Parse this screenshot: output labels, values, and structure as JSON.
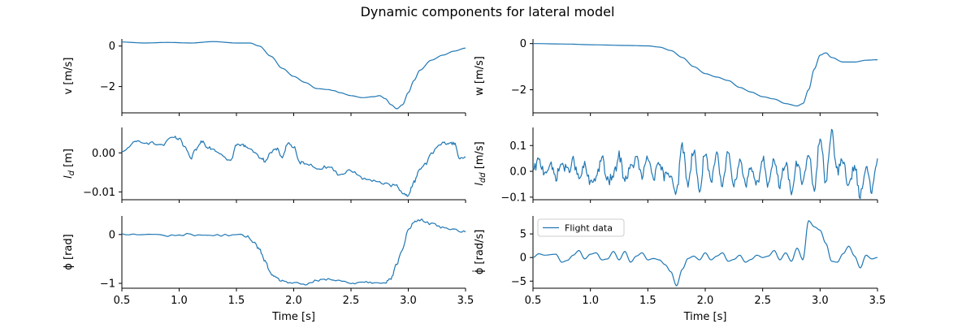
{
  "figure": {
    "title": "Dynamic components for lateral model",
    "line_color": "#1f77b4"
  },
  "chart_data": [
    {
      "id": "v",
      "type": "line",
      "ylabel": "v [m/s]",
      "xlim": [
        0.5,
        3.5
      ],
      "ylim": [
        -3.3,
        0.35
      ],
      "xticks": [
        0.5,
        1.0,
        1.5,
        2.0,
        2.5,
        3.0,
        3.5
      ],
      "yticks": [
        0,
        -2
      ],
      "ytick_labels": [
        "0",
        "−2"
      ],
      "show_xticklabels": false,
      "grid": false,
      "series": [
        {
          "noise": 0,
          "x": [
            0.5,
            0.7,
            0.9,
            1.1,
            1.3,
            1.5,
            1.62,
            1.7,
            1.8,
            1.9,
            2.0,
            2.1,
            2.2,
            2.3,
            2.35,
            2.4,
            2.5,
            2.6,
            2.7,
            2.75,
            2.8,
            2.85,
            2.9,
            2.95,
            3.0,
            3.05,
            3.1,
            3.2,
            3.3,
            3.4,
            3.5
          ],
          "y": [
            0.2,
            0.15,
            0.18,
            0.15,
            0.22,
            0.15,
            0.15,
            0.0,
            -0.5,
            -1.1,
            -1.5,
            -1.8,
            -2.1,
            -2.15,
            -2.2,
            -2.3,
            -2.45,
            -2.55,
            -2.5,
            -2.45,
            -2.6,
            -2.9,
            -3.1,
            -2.9,
            -2.3,
            -1.7,
            -1.2,
            -0.7,
            -0.45,
            -0.25,
            -0.1
          ]
        }
      ]
    },
    {
      "id": "w",
      "type": "line",
      "ylabel": "w [m/s]",
      "xlim": [
        0.5,
        3.5
      ],
      "ylim": [
        -3.0,
        0.2
      ],
      "xticks": [
        0.5,
        1.0,
        1.5,
        2.0,
        2.5,
        3.0,
        3.5
      ],
      "yticks": [
        0,
        -2
      ],
      "ytick_labels": [
        "0",
        "−2"
      ],
      "show_xticklabels": false,
      "grid": false,
      "series": [
        {
          "noise": 0,
          "x": [
            0.5,
            0.8,
            1.0,
            1.3,
            1.5,
            1.6,
            1.7,
            1.8,
            1.9,
            2.0,
            2.1,
            2.2,
            2.3,
            2.4,
            2.5,
            2.6,
            2.7,
            2.8,
            2.85,
            2.9,
            2.95,
            3.0,
            3.05,
            3.1,
            3.2,
            3.3,
            3.4,
            3.5
          ],
          "y": [
            0.0,
            -0.02,
            -0.05,
            -0.08,
            -0.1,
            -0.15,
            -0.3,
            -0.6,
            -1.0,
            -1.3,
            -1.45,
            -1.6,
            -1.9,
            -2.1,
            -2.3,
            -2.4,
            -2.6,
            -2.7,
            -2.6,
            -2.0,
            -1.1,
            -0.5,
            -0.4,
            -0.6,
            -0.8,
            -0.8,
            -0.72,
            -0.7
          ]
        }
      ]
    },
    {
      "id": "l_d",
      "type": "line",
      "ylabel": "l_d [m]",
      "xlim": [
        0.5,
        3.5
      ],
      "ylim": [
        -0.012,
        0.0065
      ],
      "xticks": [
        0.5,
        1.0,
        1.5,
        2.0,
        2.5,
        3.0,
        3.5
      ],
      "yticks": [
        0.0,
        -0.01
      ],
      "ytick_labels": [
        "0.00",
        "−0.01"
      ],
      "show_xticklabels": false,
      "grid": false,
      "series": [
        {
          "noise": 0.0004,
          "x": [
            0.5,
            0.6,
            0.65,
            0.75,
            0.85,
            0.95,
            1.0,
            1.05,
            1.1,
            1.15,
            1.2,
            1.25,
            1.3,
            1.35,
            1.45,
            1.5,
            1.55,
            1.6,
            1.7,
            1.75,
            1.8,
            1.85,
            1.9,
            1.95,
            2.0,
            2.05,
            2.1,
            2.2,
            2.3,
            2.4,
            2.5,
            2.6,
            2.7,
            2.8,
            2.9,
            2.95,
            3.0,
            3.05,
            3.1,
            3.15,
            3.2,
            3.3,
            3.35,
            3.4,
            3.45,
            3.5
          ],
          "y": [
            0.0,
            0.0025,
            0.003,
            0.0025,
            0.002,
            0.004,
            0.0035,
            0.0015,
            -0.0015,
            0.001,
            0.003,
            0.0015,
            0.001,
            0.0,
            -0.002,
            0.002,
            0.002,
            0.0015,
            -0.001,
            -0.002,
            0.0,
            0.001,
            -0.001,
            0.0025,
            0.0015,
            -0.0025,
            -0.0025,
            -0.004,
            -0.0035,
            -0.0055,
            -0.0045,
            -0.0065,
            -0.007,
            -0.008,
            -0.0085,
            -0.0105,
            -0.0108,
            -0.0075,
            -0.004,
            -0.003,
            0.0,
            0.0025,
            0.0025,
            0.0025,
            -0.0015,
            -0.001
          ]
        }
      ]
    },
    {
      "id": "l_dd",
      "type": "line",
      "ylabel": "l_dd [m/s]",
      "xlim": [
        0.5,
        3.5
      ],
      "ylim": [
        -0.11,
        0.17
      ],
      "xticks": [
        0.5,
        1.0,
        1.5,
        2.0,
        2.5,
        3.0,
        3.5
      ],
      "yticks": [
        0.1,
        0.0,
        -0.1
      ],
      "ytick_labels": [
        "0.1",
        "0.0",
        "−0.1"
      ],
      "show_xticklabels": false,
      "grid": false,
      "series": [
        {
          "noise": 0.02,
          "x": [
            0.5,
            0.55,
            0.6,
            0.65,
            0.7,
            0.75,
            0.8,
            0.85,
            0.9,
            0.95,
            1.0,
            1.05,
            1.1,
            1.15,
            1.2,
            1.25,
            1.3,
            1.35,
            1.4,
            1.45,
            1.5,
            1.55,
            1.6,
            1.65,
            1.7,
            1.75,
            1.8,
            1.85,
            1.9,
            1.95,
            2.0,
            2.05,
            2.1,
            2.15,
            2.2,
            2.25,
            2.3,
            2.35,
            2.4,
            2.45,
            2.5,
            2.55,
            2.6,
            2.65,
            2.7,
            2.75,
            2.8,
            2.85,
            2.9,
            2.95,
            3.0,
            3.05,
            3.1,
            3.15,
            3.2,
            3.25,
            3.3,
            3.35,
            3.4,
            3.45,
            3.5
          ],
          "y": [
            0.0,
            0.04,
            0.0,
            0.02,
            -0.02,
            0.03,
            0.0,
            0.04,
            -0.03,
            0.02,
            -0.05,
            -0.02,
            0.05,
            -0.04,
            -0.02,
            0.06,
            -0.03,
            0.01,
            0.05,
            -0.02,
            0.05,
            -0.02,
            0.02,
            -0.02,
            -0.01,
            -0.08,
            0.1,
            -0.05,
            0.09,
            -0.08,
            0.08,
            -0.05,
            0.06,
            -0.06,
            0.09,
            -0.06,
            0.05,
            -0.05,
            0.02,
            -0.05,
            0.05,
            -0.06,
            0.04,
            -0.05,
            0.04,
            -0.08,
            0.03,
            -0.04,
            0.06,
            -0.07,
            0.13,
            -0.04,
            0.16,
            0.0,
            0.04,
            -0.06,
            0.02,
            -0.09,
            0.02,
            -0.08,
            0.05
          ]
        }
      ]
    },
    {
      "id": "phi",
      "type": "line",
      "ylabel": "ϕ [rad]",
      "xlim": [
        0.5,
        3.5
      ],
      "ylim": [
        -1.1,
        0.38
      ],
      "xticks": [
        0.5,
        1.0,
        1.5,
        2.0,
        2.5,
        3.0,
        3.5
      ],
      "xtick_labels": [
        "0.5",
        "1.0",
        "1.5",
        "2.0",
        "2.5",
        "3.0",
        "3.5"
      ],
      "yticks": [
        0,
        -1
      ],
      "ytick_labels": [
        "0",
        "−1"
      ],
      "show_xticklabels": true,
      "xlabel": "Time [s]",
      "grid": false,
      "series": [
        {
          "noise": 0.025,
          "x": [
            0.5,
            0.7,
            0.9,
            1.1,
            1.3,
            1.5,
            1.6,
            1.65,
            1.7,
            1.75,
            1.8,
            1.85,
            1.9,
            2.0,
            2.1,
            2.2,
            2.3,
            2.4,
            2.5,
            2.6,
            2.7,
            2.8,
            2.85,
            2.9,
            2.95,
            3.0,
            3.05,
            3.1,
            3.2,
            3.3,
            3.4,
            3.5
          ],
          "y": [
            0.0,
            0.0,
            -0.02,
            0.0,
            -0.02,
            0.0,
            -0.05,
            -0.15,
            -0.3,
            -0.55,
            -0.8,
            -0.9,
            -0.95,
            -1.0,
            -1.02,
            -0.95,
            -0.92,
            -0.95,
            -1.0,
            -0.97,
            -0.98,
            -0.98,
            -0.9,
            -0.6,
            -0.3,
            0.1,
            0.25,
            0.3,
            0.22,
            0.15,
            0.1,
            0.05
          ]
        }
      ]
    },
    {
      "id": "phidot",
      "type": "line",
      "ylabel": "ϕ̇ [rad/s]",
      "xlim": [
        0.5,
        3.5
      ],
      "ylim": [
        -6.5,
        8.8
      ],
      "xticks": [
        0.5,
        1.0,
        1.5,
        2.0,
        2.5,
        3.0,
        3.5
      ],
      "xtick_labels": [
        "0.5",
        "1.0",
        "1.5",
        "2.0",
        "2.5",
        "3.0",
        "3.5"
      ],
      "yticks": [
        5,
        0,
        -5
      ],
      "ytick_labels": [
        "5",
        "0",
        "−5"
      ],
      "show_xticklabels": true,
      "xlabel": "Time [s]",
      "grid": false,
      "legend": {
        "label": "Flight data",
        "loc": "upper left"
      },
      "series": [
        {
          "noise": 0,
          "x": [
            0.5,
            0.55,
            0.6,
            0.7,
            0.75,
            0.8,
            0.85,
            0.9,
            0.95,
            1.0,
            1.05,
            1.1,
            1.15,
            1.2,
            1.25,
            1.3,
            1.35,
            1.4,
            1.45,
            1.5,
            1.55,
            1.6,
            1.65,
            1.7,
            1.75,
            1.8,
            1.85,
            1.9,
            1.95,
            2.0,
            2.05,
            2.1,
            2.15,
            2.2,
            2.25,
            2.3,
            2.35,
            2.4,
            2.45,
            2.5,
            2.55,
            2.6,
            2.65,
            2.7,
            2.75,
            2.8,
            2.85,
            2.9,
            2.95,
            3.0,
            3.05,
            3.1,
            3.15,
            3.2,
            3.25,
            3.3,
            3.35,
            3.4,
            3.45,
            3.5
          ],
          "y": [
            0.0,
            0.8,
            0.5,
            0.7,
            -1.0,
            -0.6,
            0.5,
            1.5,
            -0.3,
            0.7,
            1.0,
            -0.5,
            -0.3,
            1.3,
            -0.5,
            1.3,
            -1.0,
            0.3,
            1.0,
            -0.5,
            -0.2,
            -0.5,
            -1.5,
            -3.0,
            -6.0,
            -2.5,
            -0.2,
            0.3,
            -0.5,
            1.0,
            -0.5,
            0.3,
            1.0,
            -0.8,
            -0.4,
            0.5,
            -1.0,
            -0.4,
            0.5,
            0.0,
            0.3,
            1.5,
            -0.5,
            1.0,
            -0.8,
            2.0,
            -0.5,
            7.8,
            6.5,
            5.8,
            3.0,
            -0.8,
            -1.0,
            0.8,
            2.4,
            0.3,
            -2.2,
            0.5,
            -0.3,
            0.0
          ]
        }
      ]
    }
  ]
}
